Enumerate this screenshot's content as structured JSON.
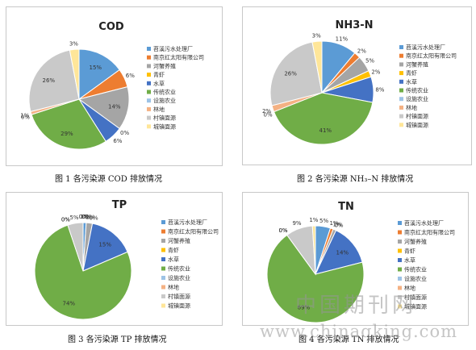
{
  "legend_labels": [
    "苕溪污水处理厂",
    "南京红太阳有限公司",
    "河蟹养殖",
    "青虾",
    "水草",
    "传统农业",
    "设施农业",
    "林地",
    "村镇面源",
    "城镇面源"
  ],
  "colors": [
    "#5B9BD5",
    "#ED7D31",
    "#A5A5A5",
    "#FFC000",
    "#4472C4",
    "#70AD47",
    "#9DC3E6",
    "#F4B183",
    "#C9C9C9",
    "#FFE699"
  ],
  "captions": {
    "fig1": "图 1  各污染源 COD 排放情况",
    "fig2": "图 2  各污染源 NH₃–N 排放情况",
    "fig3": "图 3  各污染源 TP 排放情况",
    "fig4": "图 4  各污染源 TN 排放情况"
  },
  "watermark": {
    "cn": "中国期刊网",
    "url": "www.chinaqking.com"
  },
  "chart_data": [
    {
      "type": "pie",
      "title": "COD",
      "categories": [
        "苕溪污水处理厂",
        "南京红太阳有限公司",
        "河蟹养殖",
        "青虾",
        "水草",
        "传统农业",
        "设施农业",
        "林地",
        "村镇面源",
        "城镇面源"
      ],
      "values": [
        15,
        6,
        14,
        0,
        6,
        29,
        0,
        1,
        26,
        3
      ],
      "data_labels": [
        "15%",
        "6%",
        "14%",
        "0%",
        "6%",
        "29%",
        "0%",
        "1%",
        "26%",
        "3%"
      ],
      "legend": "right"
    },
    {
      "type": "pie",
      "title": "NH3-N",
      "categories": [
        "苕溪污水处理厂",
        "南京红太阳有限公司",
        "河蟹养殖",
        "青虾",
        "水草",
        "传统农业",
        "设施农业",
        "林地",
        "村镇面源",
        "城镇面源"
      ],
      "values": [
        11,
        2,
        5,
        2,
        8,
        41,
        0,
        2,
        26,
        3
      ],
      "data_labels": [
        "11%",
        "2%",
        "5%",
        "2%",
        "8%",
        "41%",
        "0%",
        "2%",
        "26%",
        "3%"
      ],
      "legend": "right"
    },
    {
      "type": "pie",
      "title": "TP",
      "categories": [
        "苕溪污水处理厂",
        "南京红太阳有限公司",
        "河蟹养殖",
        "青虾",
        "水草",
        "传统农业",
        "设施农业",
        "林地",
        "村镇面源",
        "城镇面源"
      ],
      "values": [
        1,
        0,
        2,
        0,
        15,
        74,
        0,
        0,
        5,
        0
      ],
      "data_labels": [
        "1%",
        "0%",
        "2%",
        "0%",
        "15%",
        "74%",
        "0%",
        "0%",
        "5%",
        "0%"
      ],
      "legend": "right"
    },
    {
      "type": "pie",
      "title": "TN",
      "categories": [
        "苕溪污水处理厂",
        "南京红太阳有限公司",
        "河蟹养殖",
        "青虾",
        "水草",
        "传统农业",
        "设施农业",
        "林地",
        "村镇面源",
        "城镇面源"
      ],
      "values": [
        5,
        1,
        1,
        0,
        14,
        69,
        0,
        0,
        9,
        1
      ],
      "data_labels": [
        "5%",
        "1%",
        "1%",
        "0%",
        "14%",
        "69%",
        "0%",
        "0%",
        "9%",
        "1%"
      ],
      "legend": "right"
    }
  ]
}
